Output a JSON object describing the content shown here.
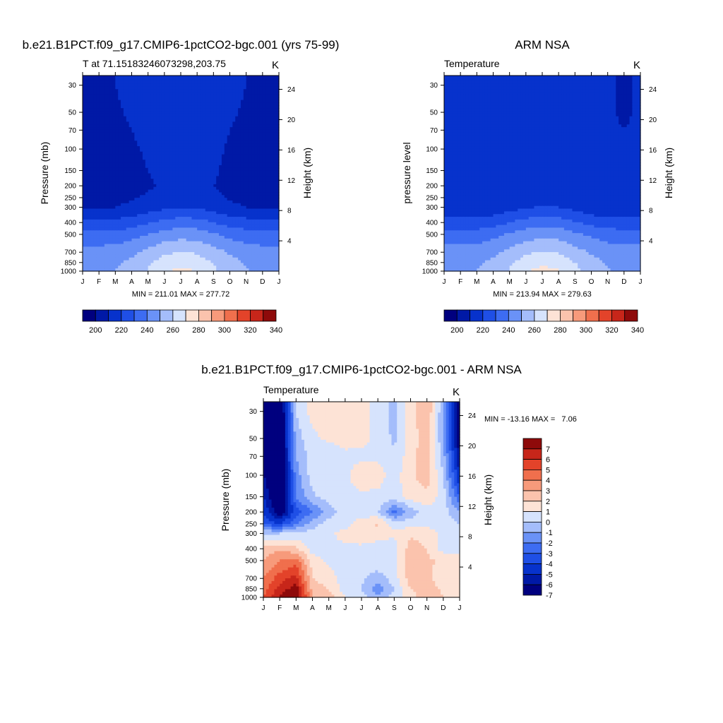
{
  "panels": [
    {
      "title": "b.e21.B1PCT.f09_g17.CMIP6-1pctCO2-bgc.001 (yrs 75-99)",
      "left_label": "T at 71.15183246073298,203.75",
      "right_label": "K",
      "ylabel": "Pressure (mb)",
      "ylabel2": "Height (km)",
      "stats": "MIN = 211.01 MAX = 277.72"
    },
    {
      "title": "ARM NSA",
      "left_label": "Temperature",
      "right_label": "K",
      "ylabel": "pressure level",
      "ylabel2": "Height (km)",
      "stats": "MIN = 213.94 MAX = 279.63"
    },
    {
      "title": "b.e21.B1PCT.f09_g17.CMIP6-1pctCO2-bgc.001 - ARM NSA",
      "left_label": "Temperature",
      "right_label": "K",
      "ylabel": "Pressure (mb)",
      "ylabel2": "Height (km)",
      "stats": "MIN = -13.16 MAX =   7.06"
    }
  ],
  "colors": {
    "temp_scale": [
      "#00007f",
      "#0019a6",
      "#0732cc",
      "#1f4fe6",
      "#3d6cf2",
      "#6a92f7",
      "#a4bdfb",
      "#d6e3fd",
      "#fde3d6",
      "#fbc3ad",
      "#f79a7b",
      "#f06f4d",
      "#e3432a",
      "#c7261a",
      "#8e0a0a"
    ],
    "diff_scale": [
      "#00007f",
      "#0019a6",
      "#0732cc",
      "#1f4fe6",
      "#3d6cf2",
      "#6a92f7",
      "#a4bdfb",
      "#d6e3fd",
      "#fde3d6",
      "#fbc3ad",
      "#f79a7b",
      "#f06f4d",
      "#e3432a",
      "#c7261a",
      "#8e0a0a"
    ]
  },
  "chart_data": [
    {
      "type": "heatmap",
      "title": "b.e21.B1PCT.f09_g17.CMIP6-1pctCO2-bgc.001 (yrs 75-99)",
      "xlabel": "",
      "ylabel": "Pressure (mb)",
      "y2label": "Height (km)",
      "x_ticks": [
        "J",
        "F",
        "M",
        "A",
        "M",
        "J",
        "J",
        "A",
        "S",
        "O",
        "N",
        "D",
        "J"
      ],
      "y_ticks": [
        30,
        50,
        70,
        100,
        150,
        200,
        250,
        300,
        400,
        500,
        700,
        850,
        1000
      ],
      "y2_ticks": [
        24,
        20,
        16,
        12,
        8,
        4
      ],
      "y_scale": "log",
      "ylim": [
        1000,
        25
      ],
      "colorbar_labels": [
        200,
        220,
        240,
        260,
        280,
        300,
        320,
        340
      ],
      "colorbar_levels": [
        195,
        205,
        215,
        225,
        235,
        245,
        255,
        265,
        275,
        285,
        295,
        305,
        315,
        325,
        335,
        345
      ],
      "stats": {
        "min": 211.01,
        "max": 277.72
      },
      "pressure_levels": [
        25,
        30,
        50,
        70,
        100,
        150,
        200,
        250,
        300,
        400,
        500,
        700,
        850,
        1000
      ],
      "values": [
        [
          214,
          214,
          215,
          217,
          219,
          221,
          222,
          222,
          220,
          217,
          215,
          214,
          214
        ],
        [
          214,
          214,
          215,
          217,
          219,
          221,
          222,
          222,
          220,
          217,
          215,
          214,
          214
        ],
        [
          213,
          213,
          214,
          216,
          218,
          220,
          221,
          221,
          219,
          216,
          214,
          213,
          213
        ],
        [
          212,
          212,
          213,
          215,
          217,
          219,
          220,
          220,
          218,
          215,
          213,
          212,
          212
        ],
        [
          212,
          212,
          213,
          214,
          216,
          218,
          219,
          219,
          217,
          214,
          212,
          212,
          212
        ],
        [
          212,
          212,
          212,
          213,
          215,
          217,
          218,
          218,
          216,
          213,
          212,
          212,
          212
        ],
        [
          212,
          212,
          212,
          213,
          214,
          216,
          217,
          217,
          215,
          213,
          212,
          212,
          212
        ],
        [
          213,
          213,
          213,
          214,
          216,
          218,
          219,
          219,
          217,
          214,
          213,
          213,
          213
        ],
        [
          215,
          215,
          215,
          217,
          220,
          223,
          225,
          224,
          221,
          217,
          215,
          215,
          215
        ],
        [
          228,
          228,
          228,
          230,
          234,
          238,
          240,
          239,
          235,
          231,
          229,
          228,
          228
        ],
        [
          238,
          238,
          238,
          241,
          245,
          249,
          251,
          250,
          246,
          242,
          239,
          238,
          238
        ],
        [
          249,
          249,
          250,
          253,
          258,
          263,
          265,
          264,
          259,
          254,
          251,
          249,
          249
        ],
        [
          252,
          252,
          253,
          257,
          263,
          270,
          272,
          270,
          264,
          258,
          254,
          252,
          252
        ],
        [
          253,
          253,
          255,
          259,
          266,
          274,
          277,
          275,
          267,
          260,
          256,
          253,
          253
        ]
      ]
    },
    {
      "type": "heatmap",
      "title": "ARM NSA",
      "xlabel": "",
      "ylabel": "pressure level",
      "y2label": "Height (km)",
      "x_ticks": [
        "J",
        "F",
        "M",
        "A",
        "M",
        "J",
        "J",
        "A",
        "S",
        "O",
        "N",
        "D",
        "J"
      ],
      "y_ticks": [
        30,
        50,
        70,
        100,
        150,
        200,
        250,
        300,
        400,
        500,
        700,
        850,
        1000
      ],
      "y2_ticks": [
        24,
        20,
        16,
        12,
        8,
        4
      ],
      "y_scale": "log",
      "ylim": [
        1000,
        25
      ],
      "colorbar_labels": [
        200,
        220,
        240,
        260,
        280,
        300,
        320,
        340
      ],
      "colorbar_levels": [
        195,
        205,
        215,
        225,
        235,
        245,
        255,
        265,
        275,
        285,
        295,
        305,
        315,
        325,
        335,
        345
      ],
      "stats": {
        "min": 213.94,
        "max": 279.63
      },
      "pressure_levels": [
        25,
        30,
        50,
        70,
        100,
        150,
        200,
        250,
        300,
        400,
        500,
        700,
        850,
        1000
      ],
      "values": [
        [
          218,
          218,
          218,
          219,
          221,
          223,
          224,
          223,
          221,
          219,
          216,
          214,
          216
        ],
        [
          218,
          218,
          218,
          219,
          221,
          223,
          224,
          223,
          221,
          219,
          216,
          214,
          216
        ],
        [
          218,
          218,
          218,
          219,
          220,
          222,
          223,
          222,
          220,
          219,
          216,
          214,
          216
        ],
        [
          218,
          218,
          218,
          219,
          220,
          221,
          222,
          221,
          220,
          218,
          216,
          215,
          216
        ],
        [
          218,
          218,
          218,
          218,
          219,
          220,
          221,
          221,
          220,
          218,
          216,
          215,
          216
        ],
        [
          217,
          217,
          217,
          217,
          218,
          219,
          220,
          220,
          219,
          217,
          216,
          215,
          216
        ],
        [
          216,
          216,
          216,
          216,
          217,
          218,
          219,
          219,
          218,
          216,
          215,
          215,
          215
        ],
        [
          215,
          215,
          215,
          216,
          217,
          219,
          220,
          219,
          218,
          216,
          215,
          215,
          215
        ],
        [
          217,
          217,
          217,
          218,
          221,
          224,
          226,
          225,
          222,
          218,
          216,
          216,
          216
        ],
        [
          229,
          229,
          229,
          231,
          235,
          239,
          241,
          240,
          236,
          232,
          230,
          229,
          229
        ],
        [
          239,
          239,
          239,
          242,
          246,
          250,
          252,
          251,
          247,
          243,
          240,
          239,
          239
        ],
        [
          249,
          249,
          250,
          253,
          258,
          263,
          266,
          264,
          259,
          254,
          251,
          249,
          249
        ],
        [
          252,
          252,
          253,
          257,
          263,
          270,
          273,
          271,
          265,
          258,
          254,
          252,
          252
        ],
        [
          253,
          253,
          255,
          259,
          266,
          275,
          278,
          276,
          268,
          260,
          256,
          253,
          253
        ]
      ]
    },
    {
      "type": "heatmap",
      "title": "b.e21.B1PCT.f09_g17.CMIP6-1pctCO2-bgc.001 - ARM NSA",
      "xlabel": "",
      "ylabel": "Pressure (mb)",
      "y2label": "Height (km)",
      "x_ticks": [
        "J",
        "F",
        "M",
        "A",
        "M",
        "J",
        "J",
        "A",
        "S",
        "O",
        "N",
        "D",
        "J"
      ],
      "y_ticks": [
        30,
        50,
        70,
        100,
        150,
        200,
        250,
        300,
        400,
        500,
        700,
        850,
        1000
      ],
      "y2_ticks": [
        24,
        20,
        16,
        12,
        8,
        4
      ],
      "y_scale": "log",
      "ylim": [
        1000,
        25
      ],
      "colorbar_labels": [
        7,
        6,
        5,
        4,
        3,
        2,
        1,
        0,
        -1,
        -2,
        -3,
        -4,
        -5,
        -6,
        -7
      ],
      "colorbar_levels": [
        -8,
        -7,
        -6,
        -5,
        -4,
        -3,
        -2,
        -1,
        0,
        1,
        2,
        3,
        4,
        5,
        6,
        7,
        8
      ],
      "stats": {
        "min": -13.16,
        "max": 7.06
      },
      "pressure_levels": [
        25,
        30,
        50,
        70,
        100,
        150,
        200,
        250,
        300,
        400,
        500,
        700,
        850,
        1000
      ],
      "values": [
        [
          -8,
          -9,
          -1,
          0.5,
          0.5,
          0.5,
          0.3,
          -0.3,
          -1.5,
          0.5,
          2,
          -2,
          -8
        ],
        [
          -8,
          -9,
          -1,
          0.5,
          0.5,
          0.5,
          0.3,
          -0.3,
          -1.5,
          0.5,
          2,
          -2,
          -8
        ],
        [
          -8,
          -9,
          -1.5,
          -0.3,
          0.3,
          0.5,
          0.3,
          -0.3,
          -1.2,
          0.5,
          1.5,
          -2,
          -8
        ],
        [
          -8,
          -9,
          -2,
          -0.5,
          -1,
          -0.3,
          -0.3,
          -0.2,
          -0.8,
          0.6,
          1.8,
          -1.5,
          -7
        ],
        [
          -7,
          -9,
          -2.5,
          -0.5,
          -0.5,
          -0.3,
          0.8,
          0.5,
          -0.5,
          0.8,
          1.5,
          -1,
          -6
        ],
        [
          -6,
          -9,
          -3,
          -1.2,
          -0.5,
          -0.3,
          -0.3,
          -0.3,
          -0.5,
          0.5,
          0.8,
          -0.5,
          -4
        ],
        [
          -5,
          -8,
          -4.5,
          -3,
          -1.5,
          -0.5,
          -0.5,
          -0.8,
          -3.5,
          -1.5,
          -0.5,
          -0.5,
          -2
        ],
        [
          -4,
          -5,
          -3,
          -1.5,
          -0.5,
          -0.5,
          0.5,
          1.2,
          -0.5,
          -0.5,
          -0.3,
          -0.3,
          -1
        ],
        [
          -1,
          -1,
          -0.8,
          -0.5,
          -0.3,
          0.5,
          0.8,
          0.5,
          0.2,
          0.8,
          0.5,
          -0.3,
          -0.5
        ],
        [
          1.5,
          1.8,
          1.2,
          -0.5,
          -0.3,
          -0.3,
          -0.3,
          -0.5,
          -0.5,
          1.5,
          1,
          -0.5,
          -0.5
        ],
        [
          2,
          3,
          3.5,
          0.5,
          -0.3,
          -0.5,
          -0.5,
          -0.3,
          -0.5,
          1.8,
          1.2,
          0.8,
          0.5
        ],
        [
          3,
          4.5,
          5.5,
          1,
          0.5,
          -0.5,
          -0.8,
          -1.5,
          -0.5,
          1.5,
          1.2,
          0.5,
          0.5
        ],
        [
          3.5,
          5.5,
          6.5,
          1.5,
          1,
          -0.5,
          -1,
          -2.5,
          -1,
          1,
          1.5,
          0.8,
          0.5
        ],
        [
          4,
          6,
          7,
          2,
          1.5,
          0,
          -0.5,
          -2,
          -0.5,
          0.5,
          2,
          1,
          0.5
        ]
      ]
    }
  ]
}
